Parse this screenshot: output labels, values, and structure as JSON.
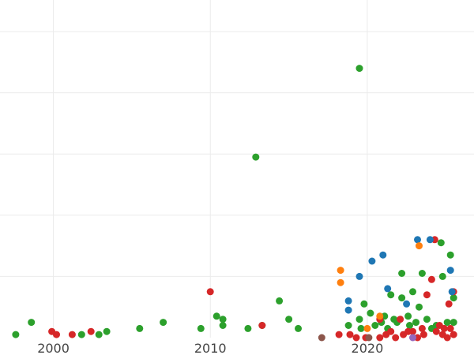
{
  "chart_data": {
    "type": "scatter",
    "title": "",
    "xlabel": "",
    "ylabel": "",
    "xlim": [
      1996.6,
      2026.8
    ],
    "ylim": [
      0,
      1.0
    ],
    "grid": true,
    "x_ticks": [
      2000,
      2010,
      2020
    ],
    "x_tick_labels": [
      "2000",
      "2010",
      "2020"
    ],
    "y_gridlines": [
      0.2,
      0.4,
      0.6,
      0.8,
      1.0
    ],
    "legend": "none",
    "series": [
      {
        "color": "#2ca02c",
        "points": [
          [
            1997.6,
            0.01
          ],
          [
            1998.6,
            0.05
          ],
          [
            2001.8,
            0.01
          ],
          [
            2002.9,
            0.01
          ],
          [
            2003.4,
            0.02
          ],
          [
            2005.5,
            0.03
          ],
          [
            2007.0,
            0.05
          ],
          [
            2009.4,
            0.03
          ],
          [
            2010.4,
            0.07
          ],
          [
            2010.8,
            0.06
          ],
          [
            2010.8,
            0.04
          ],
          [
            2012.4,
            0.03
          ],
          [
            2012.9,
            0.59
          ],
          [
            2013.3,
            0.04
          ],
          [
            2014.4,
            0.12
          ],
          [
            2015.0,
            0.06
          ],
          [
            2015.6,
            0.03
          ],
          [
            2018.8,
            0.04
          ],
          [
            2019.5,
            0.88
          ],
          [
            2019.5,
            0.06
          ],
          [
            2019.6,
            0.03
          ],
          [
            2019.8,
            0.11
          ],
          [
            2020.2,
            0.08
          ],
          [
            2020.5,
            0.04
          ],
          [
            2020.9,
            0.05
          ],
          [
            2021.1,
            0.07
          ],
          [
            2021.3,
            0.03
          ],
          [
            2021.5,
            0.14
          ],
          [
            2021.7,
            0.06
          ],
          [
            2021.9,
            0.05
          ],
          [
            2022.2,
            0.21
          ],
          [
            2022.2,
            0.13
          ],
          [
            2022.6,
            0.07
          ],
          [
            2022.7,
            0.04
          ],
          [
            2022.9,
            0.15
          ],
          [
            2023.1,
            0.05
          ],
          [
            2023.3,
            0.1
          ],
          [
            2023.5,
            0.21
          ],
          [
            2023.8,
            0.06
          ],
          [
            2024.1,
            0.03
          ],
          [
            2024.4,
            0.04
          ],
          [
            2024.7,
            0.31
          ],
          [
            2024.8,
            0.2
          ],
          [
            2025.1,
            0.05
          ],
          [
            2025.3,
            0.27
          ],
          [
            2025.5,
            0.13
          ],
          [
            2025.5,
            0.05
          ]
        ]
      },
      {
        "color": "#d62728",
        "points": [
          [
            1999.9,
            0.02
          ],
          [
            2000.2,
            0.01
          ],
          [
            2001.2,
            0.01
          ],
          [
            2002.4,
            0.02
          ],
          [
            2010.0,
            0.15
          ],
          [
            2013.3,
            0.04
          ],
          [
            2018.2,
            0.01
          ],
          [
            2018.9,
            0.01
          ],
          [
            2019.3,
            0.0
          ],
          [
            2019.9,
            0.0
          ],
          [
            2020.8,
            0.0
          ],
          [
            2020.8,
            0.06
          ],
          [
            2021.2,
            0.01
          ],
          [
            2021.5,
            0.02
          ],
          [
            2021.8,
            0.0
          ],
          [
            2022.1,
            0.06
          ],
          [
            2022.3,
            0.01
          ],
          [
            2022.6,
            0.02
          ],
          [
            2022.9,
            0.02
          ],
          [
            2023.2,
            0.0
          ],
          [
            2023.5,
            0.03
          ],
          [
            2023.6,
            0.01
          ],
          [
            2023.8,
            0.14
          ],
          [
            2024.1,
            0.19
          ],
          [
            2024.3,
            0.32
          ],
          [
            2024.4,
            0.02
          ],
          [
            2024.6,
            0.04
          ],
          [
            2024.8,
            0.01
          ],
          [
            2024.9,
            0.03
          ],
          [
            2025.1,
            0.0
          ],
          [
            2025.2,
            0.11
          ],
          [
            2025.3,
            0.03
          ],
          [
            2025.5,
            0.15
          ],
          [
            2025.5,
            0.01
          ]
        ]
      },
      {
        "color": "#1f77b4",
        "points": [
          [
            2018.8,
            0.12
          ],
          [
            2018.8,
            0.09
          ],
          [
            2019.5,
            0.2
          ],
          [
            2020.3,
            0.25
          ],
          [
            2021.0,
            0.27
          ],
          [
            2021.3,
            0.16
          ],
          [
            2022.5,
            0.11
          ],
          [
            2023.2,
            0.32
          ],
          [
            2024.0,
            0.32
          ],
          [
            2025.3,
            0.22
          ],
          [
            2025.4,
            0.15
          ]
        ]
      },
      {
        "color": "#ff7f0e",
        "points": [
          [
            2018.3,
            0.22
          ],
          [
            2018.3,
            0.18
          ],
          [
            2020.0,
            0.03
          ],
          [
            2020.8,
            0.07
          ],
          [
            2023.3,
            0.3
          ]
        ]
      },
      {
        "color": "#8c564b",
        "points": [
          [
            2017.1,
            0.0
          ],
          [
            2020.1,
            0.0
          ]
        ]
      },
      {
        "color": "#9467bd",
        "points": [
          [
            2022.9,
            0.0
          ]
        ]
      }
    ]
  }
}
